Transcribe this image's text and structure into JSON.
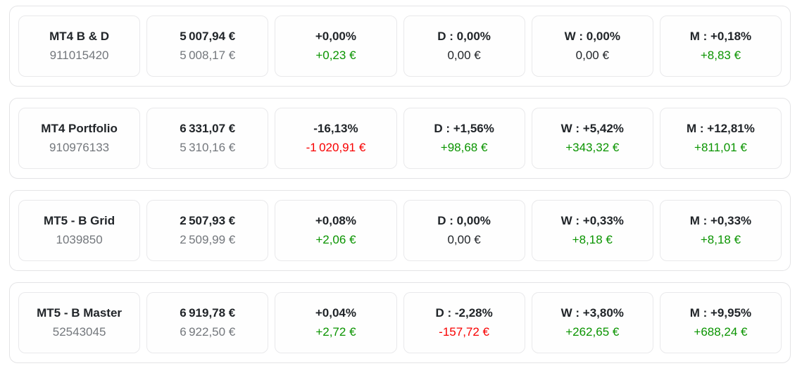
{
  "colors": {
    "green": "#0a9400",
    "red": "#f80000",
    "dark": "#212529",
    "gray": "#73777c"
  },
  "accounts": [
    {
      "name": "MT4 B & D",
      "number": "911015420",
      "balance": "5 007,94 €",
      "equity": "5 008,17 €",
      "total": {
        "pct": "+0,00%",
        "amount": "+0,23 €",
        "tone": "green"
      },
      "daily": {
        "pct": "D : 0,00%",
        "amount": "0,00 €",
        "tone": "dark"
      },
      "weekly": {
        "pct": "W : 0,00%",
        "amount": "0,00 €",
        "tone": "dark"
      },
      "monthly": {
        "pct": "M : +0,18%",
        "amount": "+8,83 €",
        "tone": "green"
      }
    },
    {
      "name": "MT4 Portfolio",
      "number": "910976133",
      "balance": "6 331,07 €",
      "equity": "5 310,16 €",
      "total": {
        "pct": "-16,13%",
        "amount": "-1 020,91 €",
        "tone": "red"
      },
      "daily": {
        "pct": "D : +1,56%",
        "amount": "+98,68 €",
        "tone": "green"
      },
      "weekly": {
        "pct": "W : +5,42%",
        "amount": "+343,32 €",
        "tone": "green"
      },
      "monthly": {
        "pct": "M : +12,81%",
        "amount": "+811,01 €",
        "tone": "green"
      }
    },
    {
      "name": "MT5 - B Grid",
      "number": "1039850",
      "balance": "2 507,93 €",
      "equity": "2 509,99 €",
      "total": {
        "pct": "+0,08%",
        "amount": "+2,06 €",
        "tone": "green"
      },
      "daily": {
        "pct": "D : 0,00%",
        "amount": "0,00 €",
        "tone": "dark"
      },
      "weekly": {
        "pct": "W : +0,33%",
        "amount": "+8,18 €",
        "tone": "green"
      },
      "monthly": {
        "pct": "M : +0,33%",
        "amount": "+8,18 €",
        "tone": "green"
      }
    },
    {
      "name": "MT5 - B Master",
      "number": "52543045",
      "balance": "6 919,78 €",
      "equity": "6 922,50 €",
      "total": {
        "pct": "+0,04%",
        "amount": "+2,72 €",
        "tone": "green"
      },
      "daily": {
        "pct": "D : -2,28%",
        "amount": "-157,72 €",
        "tone": "red"
      },
      "weekly": {
        "pct": "W : +3,80%",
        "amount": "+262,65 €",
        "tone": "green"
      },
      "monthly": {
        "pct": "M : +9,95%",
        "amount": "+688,24 €",
        "tone": "green"
      }
    }
  ]
}
